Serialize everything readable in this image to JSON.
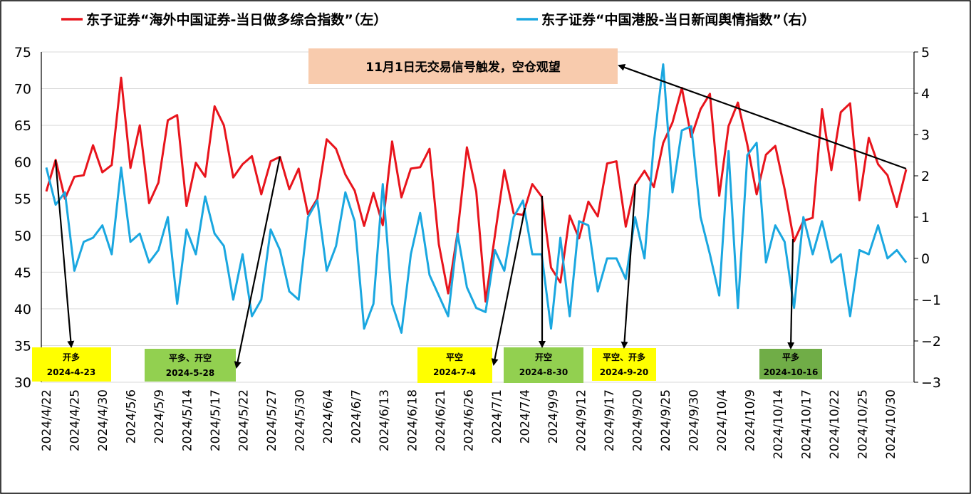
{
  "chart_data": {
    "type": "line",
    "legend": [
      {
        "name": "东子证券“海外中国证券-当日做多综合指数”（左）",
        "color": "#e8141c"
      },
      {
        "name": "东子证券“中国港股-当日新闻舆情指数”（右）",
        "color": "#1aa7e0"
      }
    ],
    "legend_position": "top",
    "y_left": {
      "min": 30,
      "max": 75,
      "ticks": [
        "30",
        "35",
        "40",
        "45",
        "50",
        "55",
        "60",
        "65",
        "70",
        "75"
      ]
    },
    "y_right": {
      "min": -3,
      "max": 5,
      "ticks": [
        "−3",
        "−2",
        "−1",
        "0",
        "1",
        "2",
        "3",
        "4",
        "5"
      ]
    },
    "grid": true,
    "x_tick_labels": [
      "2024/4/22",
      "2024/4/25",
      "2024/4/30",
      "2024/5/6",
      "2024/5/9",
      "2024/5/14",
      "2024/5/17",
      "2024/5/22",
      "2024/5/27",
      "2024/5/30",
      "2024/6/4",
      "2024/6/7",
      "2024/6/13",
      "2024/6/18",
      "2024/6/21",
      "2024/6/26",
      "2024/7/1",
      "2024/7/4",
      "2024/9/9",
      "2024/9/12",
      "2024/9/17",
      "2024/9/20",
      "2024/9/25",
      "2024/9/30",
      "2024/10/4",
      "2024/10/9",
      "2024/10/14",
      "2024/10/17",
      "2024/10/22",
      "2024/10/25",
      "2024/10/30"
    ],
    "series": [
      {
        "name": "东子证券“海外中国证券-当日做多综合指数”（左）",
        "axis": "left",
        "color": "#e8141c",
        "values": [
          56.0,
          60.3,
          55.0,
          58.0,
          58.2,
          62.3,
          58.6,
          59.6,
          71.5,
          59.2,
          65.0,
          54.4,
          57.2,
          65.7,
          66.4,
          54.0,
          59.9,
          58.0,
          67.6,
          65.0,
          57.9,
          59.7,
          60.8,
          55.6,
          60.1,
          60.7,
          56.3,
          59.1,
          52.9,
          55.0,
          63.1,
          61.8,
          58.3,
          56.1,
          51.3,
          55.8,
          51.4,
          62.8,
          55.2,
          59.1,
          59.3,
          61.8,
          48.8,
          42.1,
          50.4,
          62.0,
          56.0,
          41.0,
          50.0,
          58.9,
          53.0,
          52.8,
          57.0,
          55.3,
          45.6,
          43.6,
          52.7,
          49.6,
          54.6,
          52.6,
          59.8,
          60.1,
          51.2,
          56.9,
          58.8,
          56.6,
          62.6,
          65.4,
          70.1,
          63.4,
          67.2,
          69.3,
          55.4,
          64.9,
          68.1,
          62.4,
          55.6,
          61.0,
          62.2,
          56.3,
          49.2,
          52.0,
          52.4,
          67.2,
          58.9,
          66.8,
          68.0,
          54.8,
          63.3,
          59.7,
          58.2,
          53.9,
          59.0
        ]
      },
      {
        "name": "东子证券“中国港股-当日新闻舆情指数”（右）",
        "axis": "right",
        "color": "#1aa7e0",
        "values": [
          2.2,
          1.3,
          1.6,
          -0.3,
          0.4,
          0.5,
          0.8,
          0.1,
          2.2,
          0.4,
          0.6,
          -0.1,
          0.2,
          1.0,
          -1.1,
          0.7,
          0.1,
          1.5,
          0.6,
          0.3,
          -1.0,
          0.1,
          -1.4,
          -1.0,
          0.7,
          0.2,
          -0.8,
          -1.0,
          1.0,
          1.4,
          -0.3,
          0.3,
          1.6,
          0.9,
          -1.7,
          -1.1,
          1.8,
          -1.1,
          -1.8,
          0.1,
          1.1,
          -0.4,
          -0.9,
          -1.4,
          0.6,
          -0.7,
          -1.2,
          -1.3,
          0.2,
          -0.3,
          1.0,
          1.4,
          0.1,
          0.1,
          -1.7,
          0.5,
          -1.4,
          0.9,
          0.8,
          -0.8,
          0.0,
          0.0,
          -0.5,
          1.0,
          0.0,
          2.8,
          4.7,
          1.6,
          3.1,
          3.2,
          1.0,
          0.1,
          -0.9,
          2.6,
          -1.2,
          2.5,
          2.8,
          -0.1,
          0.8,
          0.4,
          -1.2,
          1.0,
          0.1,
          0.9,
          -0.1,
          0.1,
          -1.4,
          0.2,
          0.1,
          0.8,
          0.0,
          0.2,
          -0.1
        ]
      }
    ],
    "signals": [
      {
        "label": "开多",
        "date": "2024-4-23",
        "bg": "#ffff00"
      },
      {
        "label": "平多、开空",
        "date": "2024-5-28",
        "bg": "#92d050"
      },
      {
        "label": "平空",
        "date": "2024-7-4",
        "bg": "#ffff00"
      },
      {
        "label": "开空",
        "date": "2024-8-30",
        "bg": "#92d050"
      },
      {
        "label": "平空、开多",
        "date": "2024-9-20",
        "bg": "#ffff00"
      },
      {
        "label": "平多",
        "date": "2024-10-16",
        "bg": "#70ad47"
      }
    ],
    "callout": {
      "text": "11月1日无交易信号触发，空仓观望",
      "bg": "#f8cbad"
    }
  }
}
